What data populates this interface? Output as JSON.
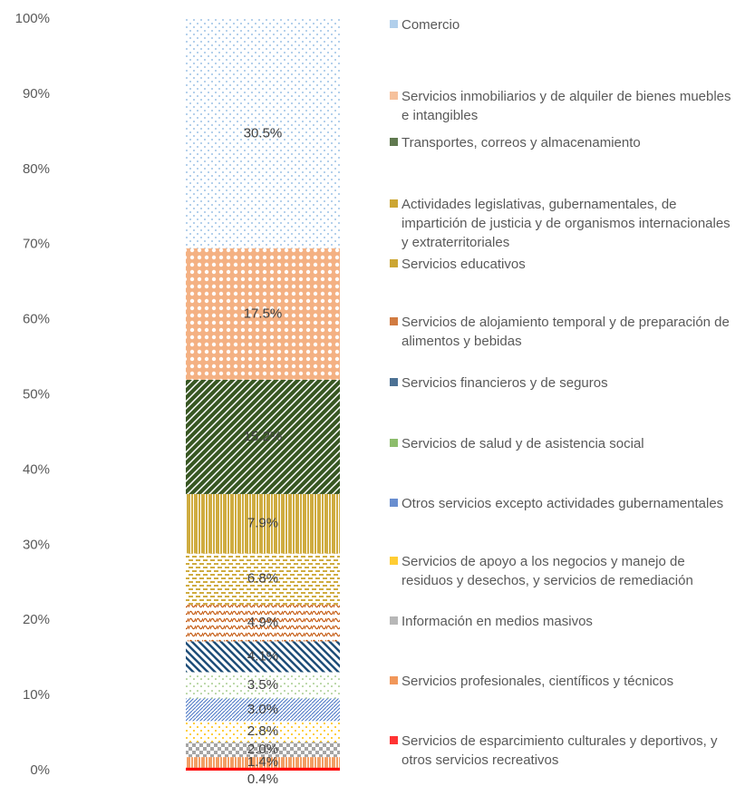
{
  "chart_data": {
    "type": "stacked-bar",
    "ylim": [
      0,
      100
    ],
    "yticks": [
      {
        "value": 0,
        "label": "0%"
      },
      {
        "value": 10,
        "label": "10%"
      },
      {
        "value": 20,
        "label": "20%"
      },
      {
        "value": 30,
        "label": "30%"
      },
      {
        "value": 40,
        "label": "40%"
      },
      {
        "value": 50,
        "label": "50%"
      },
      {
        "value": 60,
        "label": "60%"
      },
      {
        "value": 70,
        "label": "70%"
      },
      {
        "value": 80,
        "label": "80%"
      },
      {
        "value": 90,
        "label": "90%"
      },
      {
        "value": 100,
        "label": "100%"
      }
    ],
    "series": [
      {
        "name": "Comercio",
        "color": "#9dc3e6",
        "values": [
          30.5
        ],
        "value_labels": [
          "30.5%"
        ]
      },
      {
        "name": "Servicios inmobiliarios y de alquiler de bienes muebles e intangibles",
        "color": "#f4b183",
        "values": [
          17.5
        ],
        "value_labels": [
          "17.5%"
        ]
      },
      {
        "name": "Transportes, correos y almacenamiento",
        "color": "#385723",
        "values": [
          15.2
        ],
        "value_labels": [
          "15.2%"
        ]
      },
      {
        "name": "Actividades legislativas, gubernamentales, de impartición de justicia y de organismos internacionales y extraterritoriales",
        "color": "#bf9000",
        "values": [
          7.9
        ],
        "value_labels": [
          "7.9%"
        ]
      },
      {
        "name": "Servicios educativos",
        "color": "#bf9000",
        "values": [
          6.8
        ],
        "value_labels": [
          "6.8%"
        ]
      },
      {
        "name": "Servicios de alojamiento temporal y de preparación de alimentos y bebidas",
        "color": "#c55a11",
        "values": [
          4.9
        ],
        "value_labels": [
          "4.9%"
        ]
      },
      {
        "name": "Servicios financieros y de seguros",
        "color": "#1f4e79",
        "values": [
          4.1
        ],
        "value_labels": [
          "4.1%"
        ]
      },
      {
        "name": "Servicios de salud y de asistencia social",
        "color": "#70ad47",
        "values": [
          3.5
        ],
        "value_labels": [
          "3.5%"
        ]
      },
      {
        "name": "Otros servicios excepto actividades gubernamentales",
        "color": "#4472c4",
        "values": [
          3.0
        ],
        "value_labels": [
          "3.0%"
        ]
      },
      {
        "name": "Servicios de apoyo a los negocios y manejo de residuos y desechos, y servicios de remediación",
        "color": "#ffc000",
        "values": [
          2.8
        ],
        "value_labels": [
          "2.8%"
        ]
      },
      {
        "name": "Información en medios masivos",
        "color": "#a5a5a5",
        "values": [
          2.0
        ],
        "value_labels": [
          "2.0%"
        ]
      },
      {
        "name": "Servicios profesionales, científicos y técnicos",
        "color": "#ed7d31",
        "values": [
          1.4
        ],
        "value_labels": [
          "1.4%"
        ]
      },
      {
        "name": "Servicios de esparcimiento culturales y deportivos, y otros servicios recreativos",
        "color": "#ff0000",
        "values": [
          0.4
        ],
        "value_labels": [
          "0.4%"
        ]
      }
    ]
  }
}
